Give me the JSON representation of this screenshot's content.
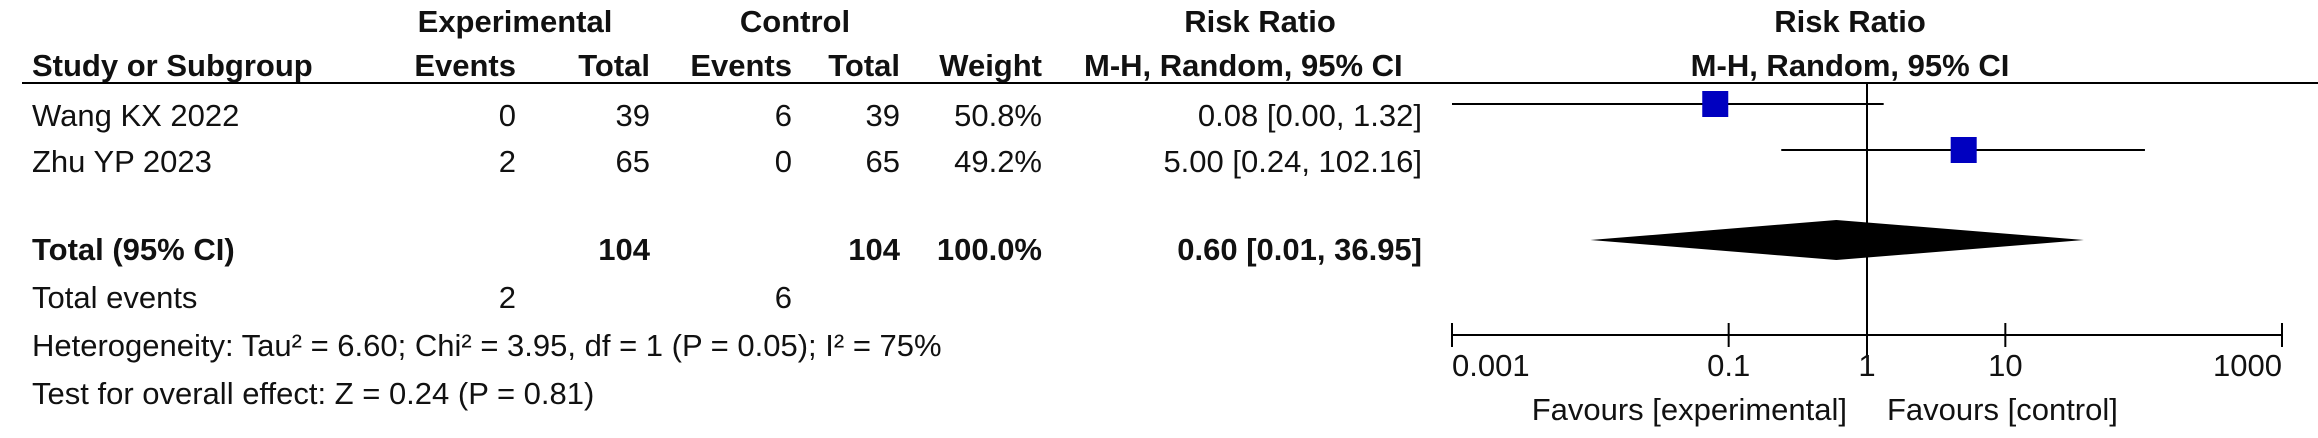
{
  "header": {
    "experimental": "Experimental",
    "control": "Control",
    "risk_ratio_left": "Risk Ratio",
    "risk_ratio_right": "Risk Ratio",
    "study_col": "Study or Subgroup",
    "exp_events": "Events",
    "exp_total": "Total",
    "ctl_events": "Events",
    "ctl_total": "Total",
    "weight": "Weight",
    "method_left": "M-H, Random, 95% CI",
    "method_right": "M-H, Random, 95% CI"
  },
  "studies": [
    {
      "name": "Wang KX 2022",
      "exp_events": "0",
      "exp_total": "39",
      "ctl_events": "6",
      "ctl_total": "39",
      "weight": "50.8%",
      "ci_text": "0.08 [0.00, 1.32]"
    },
    {
      "name": "Zhu YP 2023",
      "exp_events": "2",
      "exp_total": "65",
      "ctl_events": "0",
      "ctl_total": "65",
      "weight": "49.2%",
      "ci_text": "5.00 [0.24, 102.16]"
    }
  ],
  "total": {
    "label": "Total (95% CI)",
    "exp_total": "104",
    "ctl_total": "104",
    "weight": "100.0%",
    "ci_text": "0.60 [0.01, 36.95]"
  },
  "total_events": {
    "label": "Total events",
    "exp": "2",
    "ctl": "6"
  },
  "heterogeneity": "Heterogeneity: Tau² = 6.60; Chi² = 3.95, df = 1 (P = 0.05); I² = 75%",
  "overall_effect": "Test for overall effect: Z = 0.24 (P = 0.81)",
  "favours_left": "Favours [experimental]",
  "favours_right": "Favours [control]",
  "colors": {
    "square": "#0000c0",
    "diamond": "#000000",
    "line": "#000000"
  },
  "chart_data": {
    "type": "scatter",
    "scale": "log",
    "xlim": [
      0.001,
      1000
    ],
    "ticks": [
      0.001,
      0.1,
      1,
      10,
      1000
    ],
    "tick_labels": [
      "0.001",
      "0.1",
      "1",
      "10",
      "1000"
    ],
    "reference_line": 1,
    "studies": [
      {
        "rr": 0.08,
        "lo": 0.0,
        "hi": 1.32,
        "weight": 50.8
      },
      {
        "rr": 5.0,
        "lo": 0.24,
        "hi": 102.16,
        "weight": 49.2
      }
    ],
    "pooled": {
      "rr": 0.6,
      "lo": 0.01,
      "hi": 36.95
    }
  }
}
